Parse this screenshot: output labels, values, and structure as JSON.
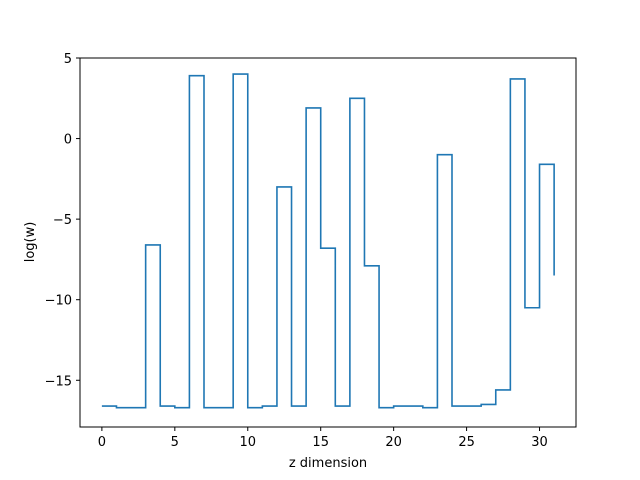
{
  "chart_data": {
    "type": "line",
    "step": "post",
    "title": "",
    "xlabel": "z dimension",
    "ylabel": "log(w)",
    "xlim": [
      -1.5,
      32.5
    ],
    "ylim": [
      -17.9,
      5.0
    ],
    "xticks": [
      0,
      5,
      10,
      15,
      20,
      25,
      30
    ],
    "yticks": [
      5,
      0,
      -5,
      -10,
      -15
    ],
    "grid": false,
    "series": [
      {
        "color": "#1f77b4",
        "x": [
          0,
          1,
          2,
          3,
          4,
          5,
          6,
          7,
          8,
          9,
          10,
          11,
          12,
          13,
          14,
          15,
          16,
          17,
          18,
          19,
          20,
          21,
          22,
          23,
          24,
          25,
          26,
          27,
          28,
          29,
          30,
          31
        ],
        "y": [
          -16.6,
          -16.7,
          -16.7,
          -6.6,
          -16.6,
          -16.7,
          3.9,
          -16.7,
          -16.7,
          4.0,
          -16.7,
          -16.6,
          -3.0,
          -16.6,
          1.9,
          -6.8,
          -16.6,
          2.5,
          -7.9,
          -16.7,
          -16.6,
          -16.6,
          -16.7,
          -1.0,
          -16.6,
          -16.6,
          -16.5,
          -15.6,
          3.7,
          -10.5,
          -1.6,
          -8.5
        ]
      }
    ]
  }
}
